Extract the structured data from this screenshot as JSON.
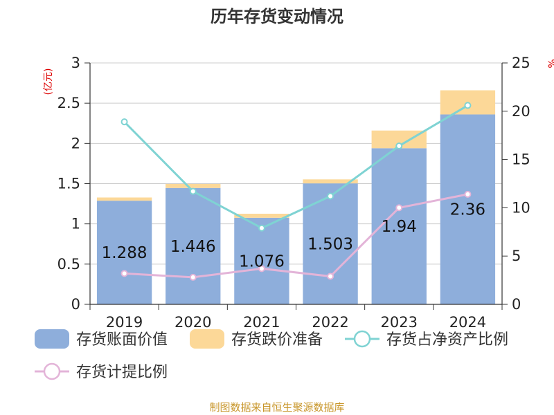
{
  "chart_data": {
    "type": "bar",
    "title": "历年存货变动情况",
    "categories": [
      "2019",
      "2020",
      "2021",
      "2022",
      "2023",
      "2024"
    ],
    "left_axis": {
      "unit": "(亿元)",
      "ylim": [
        0,
        3
      ],
      "ticks": [
        "0",
        "0.5",
        "1",
        "1.5",
        "2",
        "2.5",
        "3"
      ]
    },
    "right_axis": {
      "unit": "%",
      "ylim": [
        0,
        25
      ],
      "ticks": [
        "0",
        "5",
        "10",
        "15",
        "20",
        "25"
      ]
    },
    "series": [
      {
        "name": "存货账面价值",
        "kind": "bar",
        "stack": "inv",
        "axis": "left",
        "color": "#8eaedb",
        "values": [
          1.288,
          1.446,
          1.076,
          1.503,
          1.94,
          2.36
        ],
        "labels": [
          "1.288",
          "1.446",
          "1.076",
          "1.503",
          "1.94",
          "2.36"
        ]
      },
      {
        "name": "存货跌价准备",
        "kind": "bar",
        "stack": "inv",
        "axis": "left",
        "color": "#fcd898",
        "values": [
          0.04,
          0.05,
          0.05,
          0.05,
          0.22,
          0.3
        ]
      },
      {
        "name": "存货占净资产比例",
        "kind": "line",
        "axis": "right",
        "color": "#7fd3d3",
        "values": [
          18.9,
          11.7,
          7.9,
          11.2,
          16.4,
          20.6
        ]
      },
      {
        "name": "存货计提比例",
        "kind": "line",
        "axis": "right",
        "color": "#e3b4d8",
        "values": [
          3.2,
          2.8,
          3.7,
          2.9,
          10.0,
          11.4
        ]
      }
    ],
    "grid": true,
    "legend_position": "bottom"
  },
  "source": "制图数据来自恒生聚源数据库"
}
